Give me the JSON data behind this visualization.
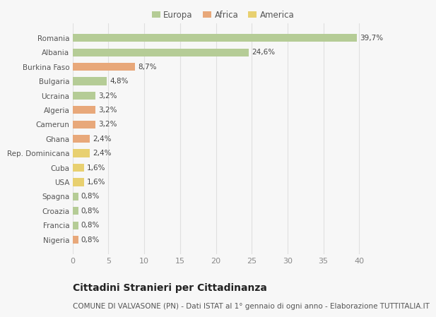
{
  "categories": [
    "Romania",
    "Albania",
    "Burkina Faso",
    "Bulgaria",
    "Ucraina",
    "Algeria",
    "Camerun",
    "Ghana",
    "Rep. Dominicana",
    "Cuba",
    "USA",
    "Spagna",
    "Croazia",
    "Francia",
    "Nigeria"
  ],
  "values": [
    39.7,
    24.6,
    8.7,
    4.8,
    3.2,
    3.2,
    3.2,
    2.4,
    2.4,
    1.6,
    1.6,
    0.8,
    0.8,
    0.8,
    0.8
  ],
  "labels": [
    "39,7%",
    "24,6%",
    "8,7%",
    "4,8%",
    "3,2%",
    "3,2%",
    "3,2%",
    "2,4%",
    "2,4%",
    "1,6%",
    "1,6%",
    "0,8%",
    "0,8%",
    "0,8%",
    "0,8%"
  ],
  "regions": [
    "Europa",
    "Europa",
    "Africa",
    "Europa",
    "Europa",
    "Africa",
    "Africa",
    "Africa",
    "America",
    "America",
    "America",
    "Europa",
    "Europa",
    "Europa",
    "Africa"
  ],
  "color_map": {
    "Europa": "#b5cc96",
    "Africa": "#e8a87a",
    "America": "#e8d070"
  },
  "bg_color": "#f7f7f7",
  "grid_color": "#e0e0e0",
  "bar_height": 0.55,
  "xlim": [
    0,
    42
  ],
  "xticks": [
    0,
    5,
    10,
    15,
    20,
    25,
    30,
    35,
    40
  ],
  "title": "Cittadini Stranieri per Cittadinanza",
  "subtitle": "COMUNE DI VALVASONE (PN) - Dati ISTAT al 1° gennaio di ogni anno - Elaborazione TUTTITALIA.IT",
  "title_fontsize": 10,
  "subtitle_fontsize": 7.5,
  "label_fontsize": 7.5,
  "ytick_fontsize": 7.5,
  "xtick_fontsize": 8,
  "legend_fontsize": 8.5,
  "legend_marker_size": 10
}
